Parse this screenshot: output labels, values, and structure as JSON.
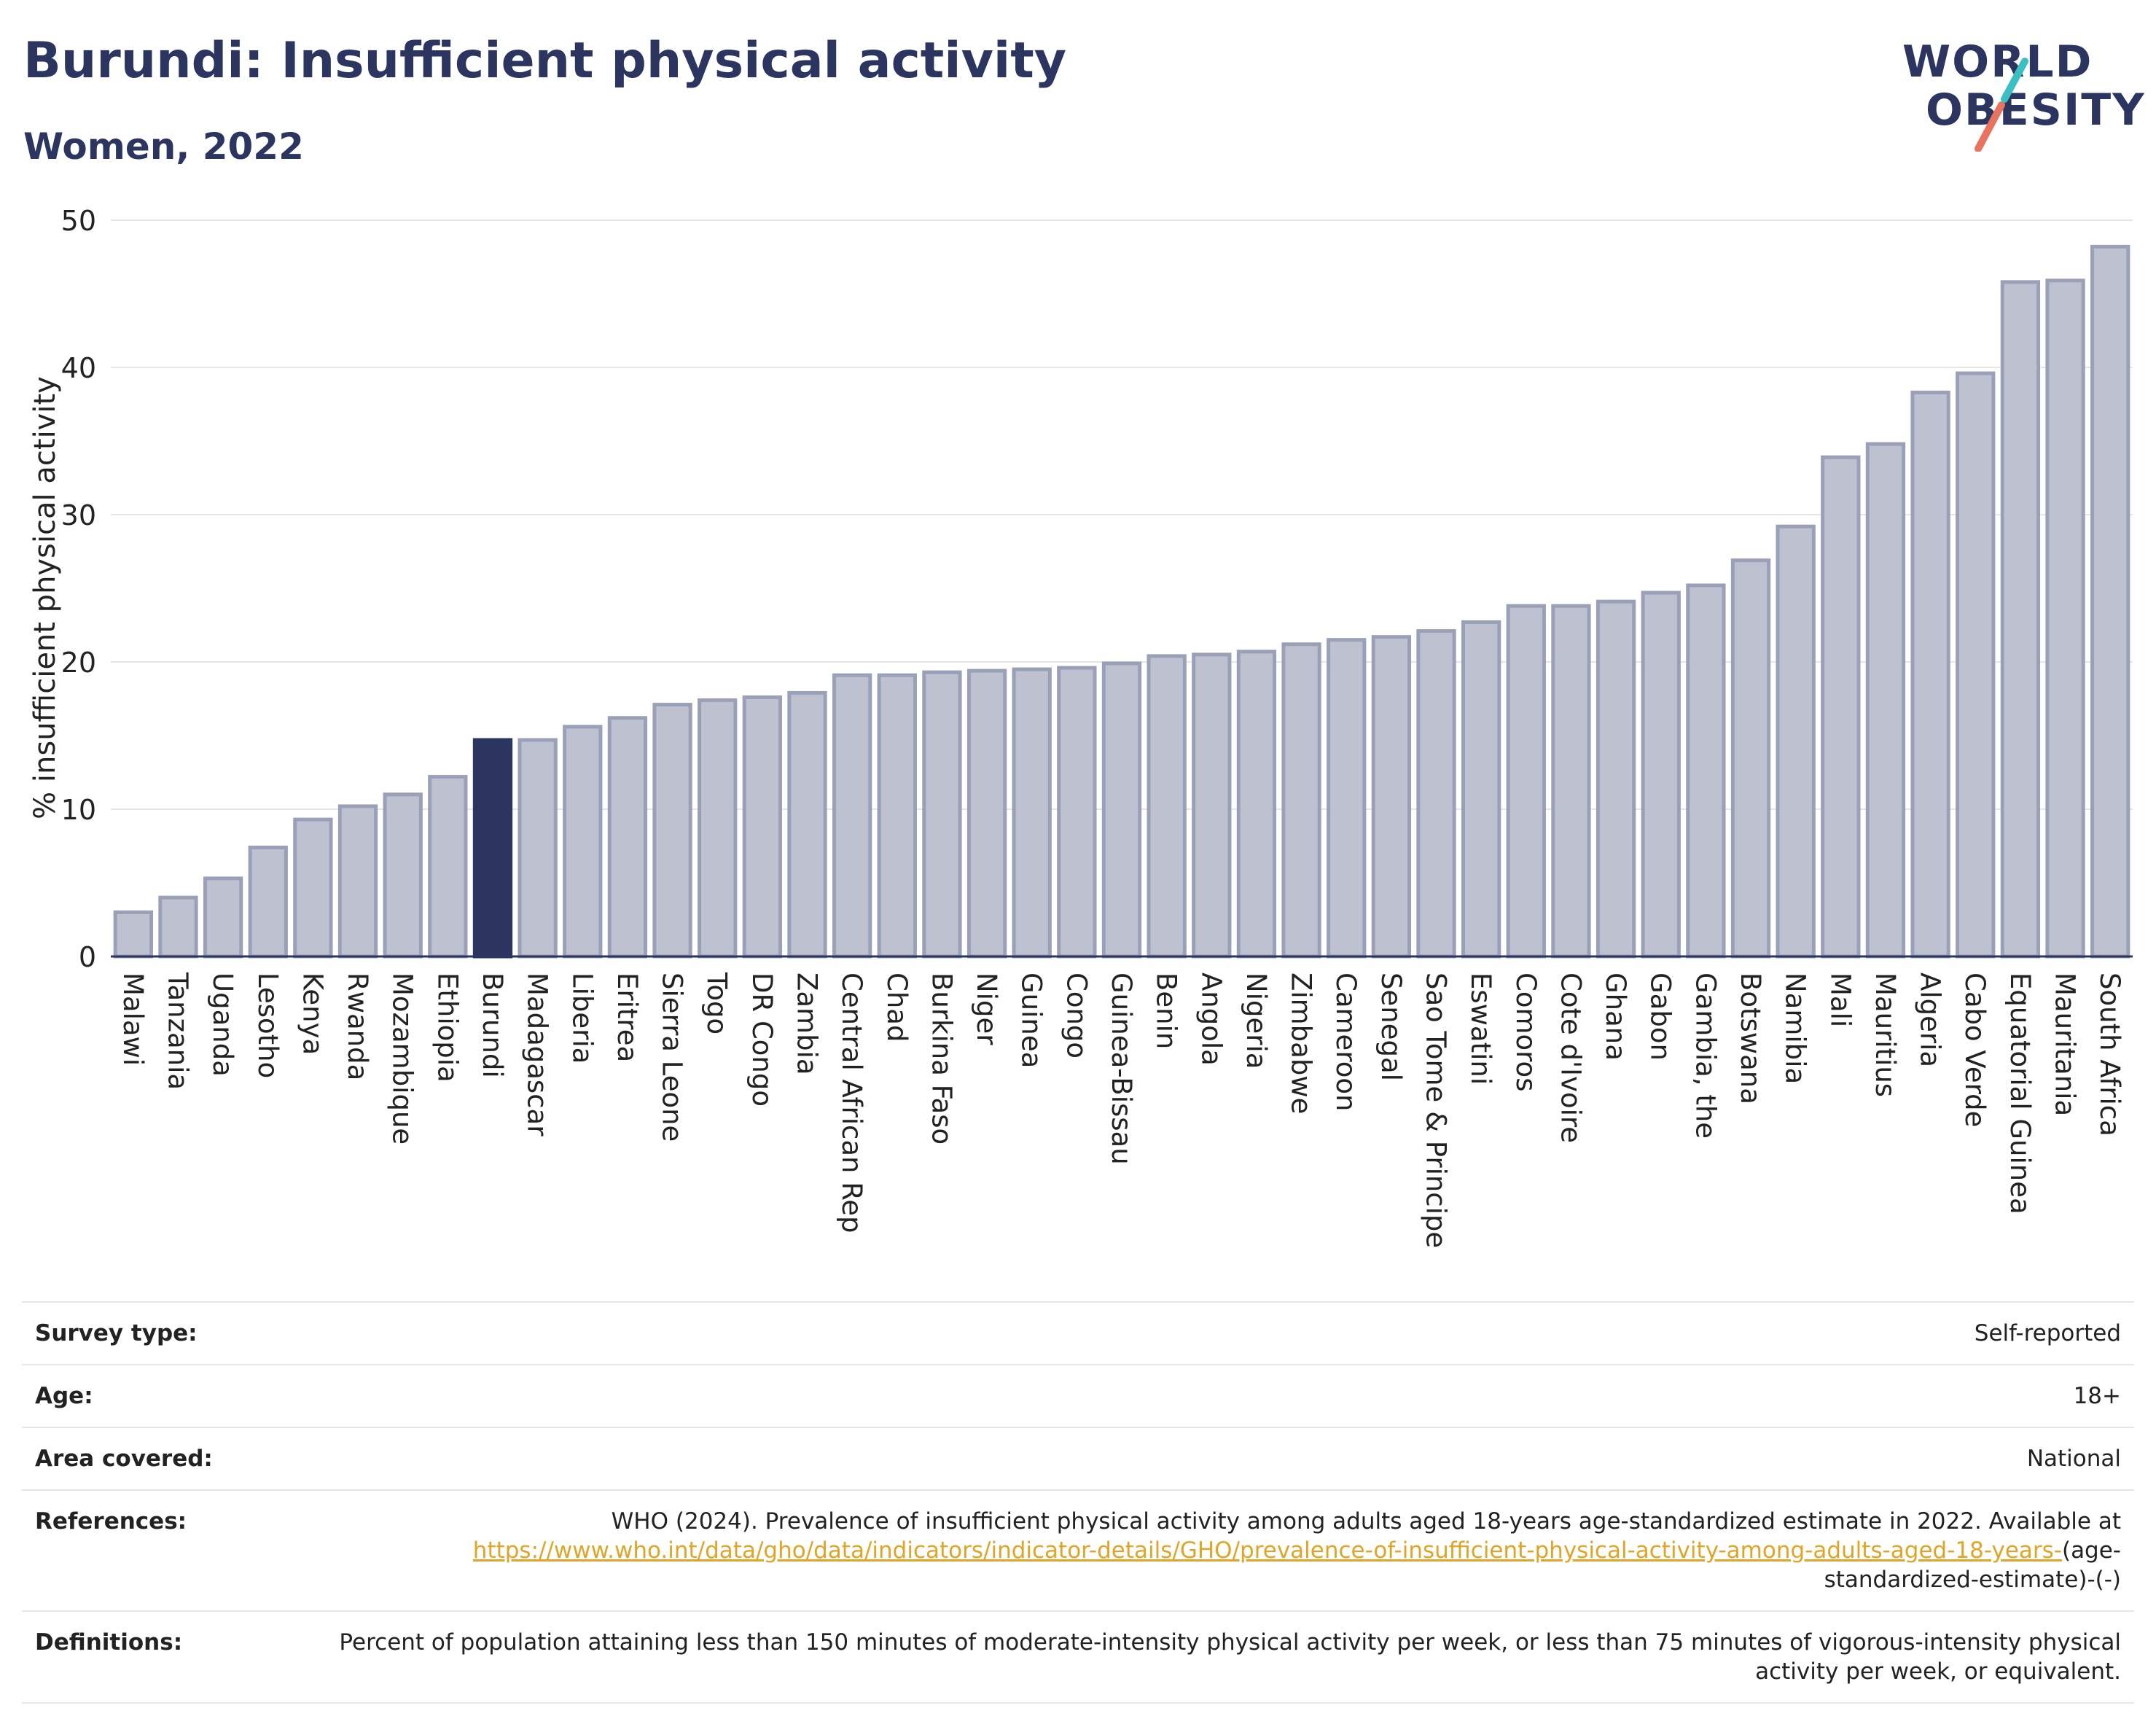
{
  "header": {
    "title": "Burundi: Insufficient physical activity",
    "subtitle": "Women, 2022"
  },
  "logo": {
    "line1": "WORLD",
    "line2": "OBESITY",
    "colors": {
      "navy": "#2b3560",
      "teal": "#3bbfc3",
      "coral": "#e8735e"
    }
  },
  "colors": {
    "bar_fill": "#bec2d0",
    "bar_stroke": "#9aa0b8",
    "highlight_fill": "#2b3560",
    "grid": "#e6e6e6",
    "axis": "#2b3560"
  },
  "chart_data": {
    "type": "bar",
    "ylabel": "% insufficient physical activity",
    "xlabel": "",
    "ylim": [
      0,
      50
    ],
    "yticks": [
      0,
      10,
      20,
      30,
      40,
      50
    ],
    "grid": true,
    "highlight": "Burundi",
    "categories": [
      "Malawi",
      "Tanzania",
      "Uganda",
      "Lesotho",
      "Kenya",
      "Rwanda",
      "Mozambique",
      "Ethiopia",
      "Burundi",
      "Madagascar",
      "Liberia",
      "Eritrea",
      "Sierra Leone",
      "Togo",
      "DR Congo",
      "Zambia",
      "Central African Rep",
      "Chad",
      "Burkina Faso",
      "Niger",
      "Guinea",
      "Congo",
      "Guinea-Bissau",
      "Benin",
      "Angola",
      "Nigeria",
      "Zimbabwe",
      "Cameroon",
      "Senegal",
      "Sao Tome & Principe",
      "Eswatini",
      "Comoros",
      "Cote d'Ivoire",
      "Ghana",
      "Gabon",
      "Gambia, the",
      "Botswana",
      "Namibia",
      "Mali",
      "Mauritius",
      "Algeria",
      "Cabo Verde",
      "Equatorial Guinea",
      "Mauritania",
      "South Africa"
    ],
    "values": [
      3.0,
      4.0,
      5.3,
      7.4,
      9.3,
      10.2,
      11.0,
      12.2,
      14.7,
      14.7,
      15.6,
      16.2,
      17.1,
      17.4,
      17.6,
      17.9,
      19.1,
      19.1,
      19.3,
      19.4,
      19.5,
      19.6,
      19.9,
      20.4,
      20.5,
      20.7,
      21.2,
      21.5,
      21.7,
      22.1,
      22.7,
      23.8,
      23.8,
      24.1,
      24.7,
      25.2,
      26.9,
      29.2,
      33.9,
      34.8,
      38.3,
      39.6,
      45.8,
      45.9,
      48.2
    ]
  },
  "meta": {
    "survey_type_label": "Survey type:",
    "survey_type": "Self-reported",
    "age_label": "Age:",
    "age": "18+",
    "area_label": "Area covered:",
    "area": "National",
    "references_label": "References:",
    "references_text": "WHO (2024). Prevalence of insufficient physical activity among adults aged 18-years age-standardized estimate in 2022. Available at",
    "references_link": "https://www.who.int/data/gho/data/indicators/indicator-details/GHO/prevalence-of-insufficient-physical-activity-among-adults-aged-18-years-",
    "references_tail": "(age-standardized-estimate)-(-)",
    "definitions_label": "Definitions:",
    "definitions": "Percent of population attaining less than 150 minutes of moderate-intensity physical activity per week, or less than 75 minutes of vigorous-intensity physical activity per week, or equivalent."
  }
}
